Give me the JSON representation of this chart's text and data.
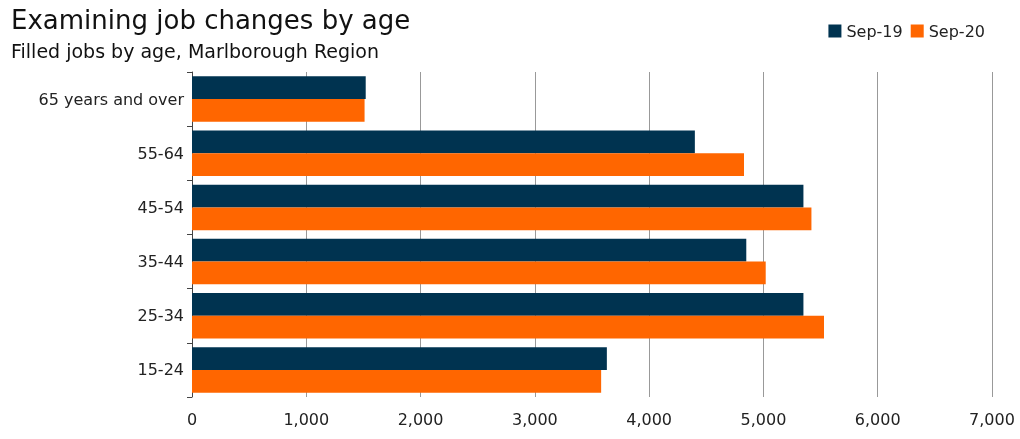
{
  "chart_data": {
    "type": "bar",
    "orientation": "horizontal",
    "title": "Examining job changes by age",
    "subtitle": "Filled jobs by age, Marlborough Region",
    "categories": [
      "65 years and over",
      "55-64",
      "45-54",
      "35-44",
      "25-34",
      "15-24"
    ],
    "series": [
      {
        "name": "Sep-19",
        "color": "#003350",
        "values": [
          1520,
          4400,
          5350,
          4850,
          5350,
          3630
        ]
      },
      {
        "name": "Sep-20",
        "color": "#ff6600",
        "values": [
          1510,
          4830,
          5420,
          5020,
          5530,
          3580
        ]
      }
    ],
    "xlim": [
      0,
      7000
    ],
    "xticks": [
      0,
      {
        "value": 1000,
        "label": "1,000"
      },
      {
        "value": 2000,
        "label": "2,000"
      },
      {
        "value": 3000,
        "label": "3,000"
      },
      {
        "value": 4000,
        "label": "4,000"
      },
      {
        "value": 5000,
        "label": "5,000"
      },
      {
        "value": 6000,
        "label": "6,000"
      },
      {
        "value": 7000,
        "label": "7,000"
      }
    ],
    "grid": "x",
    "legend": "top right"
  }
}
